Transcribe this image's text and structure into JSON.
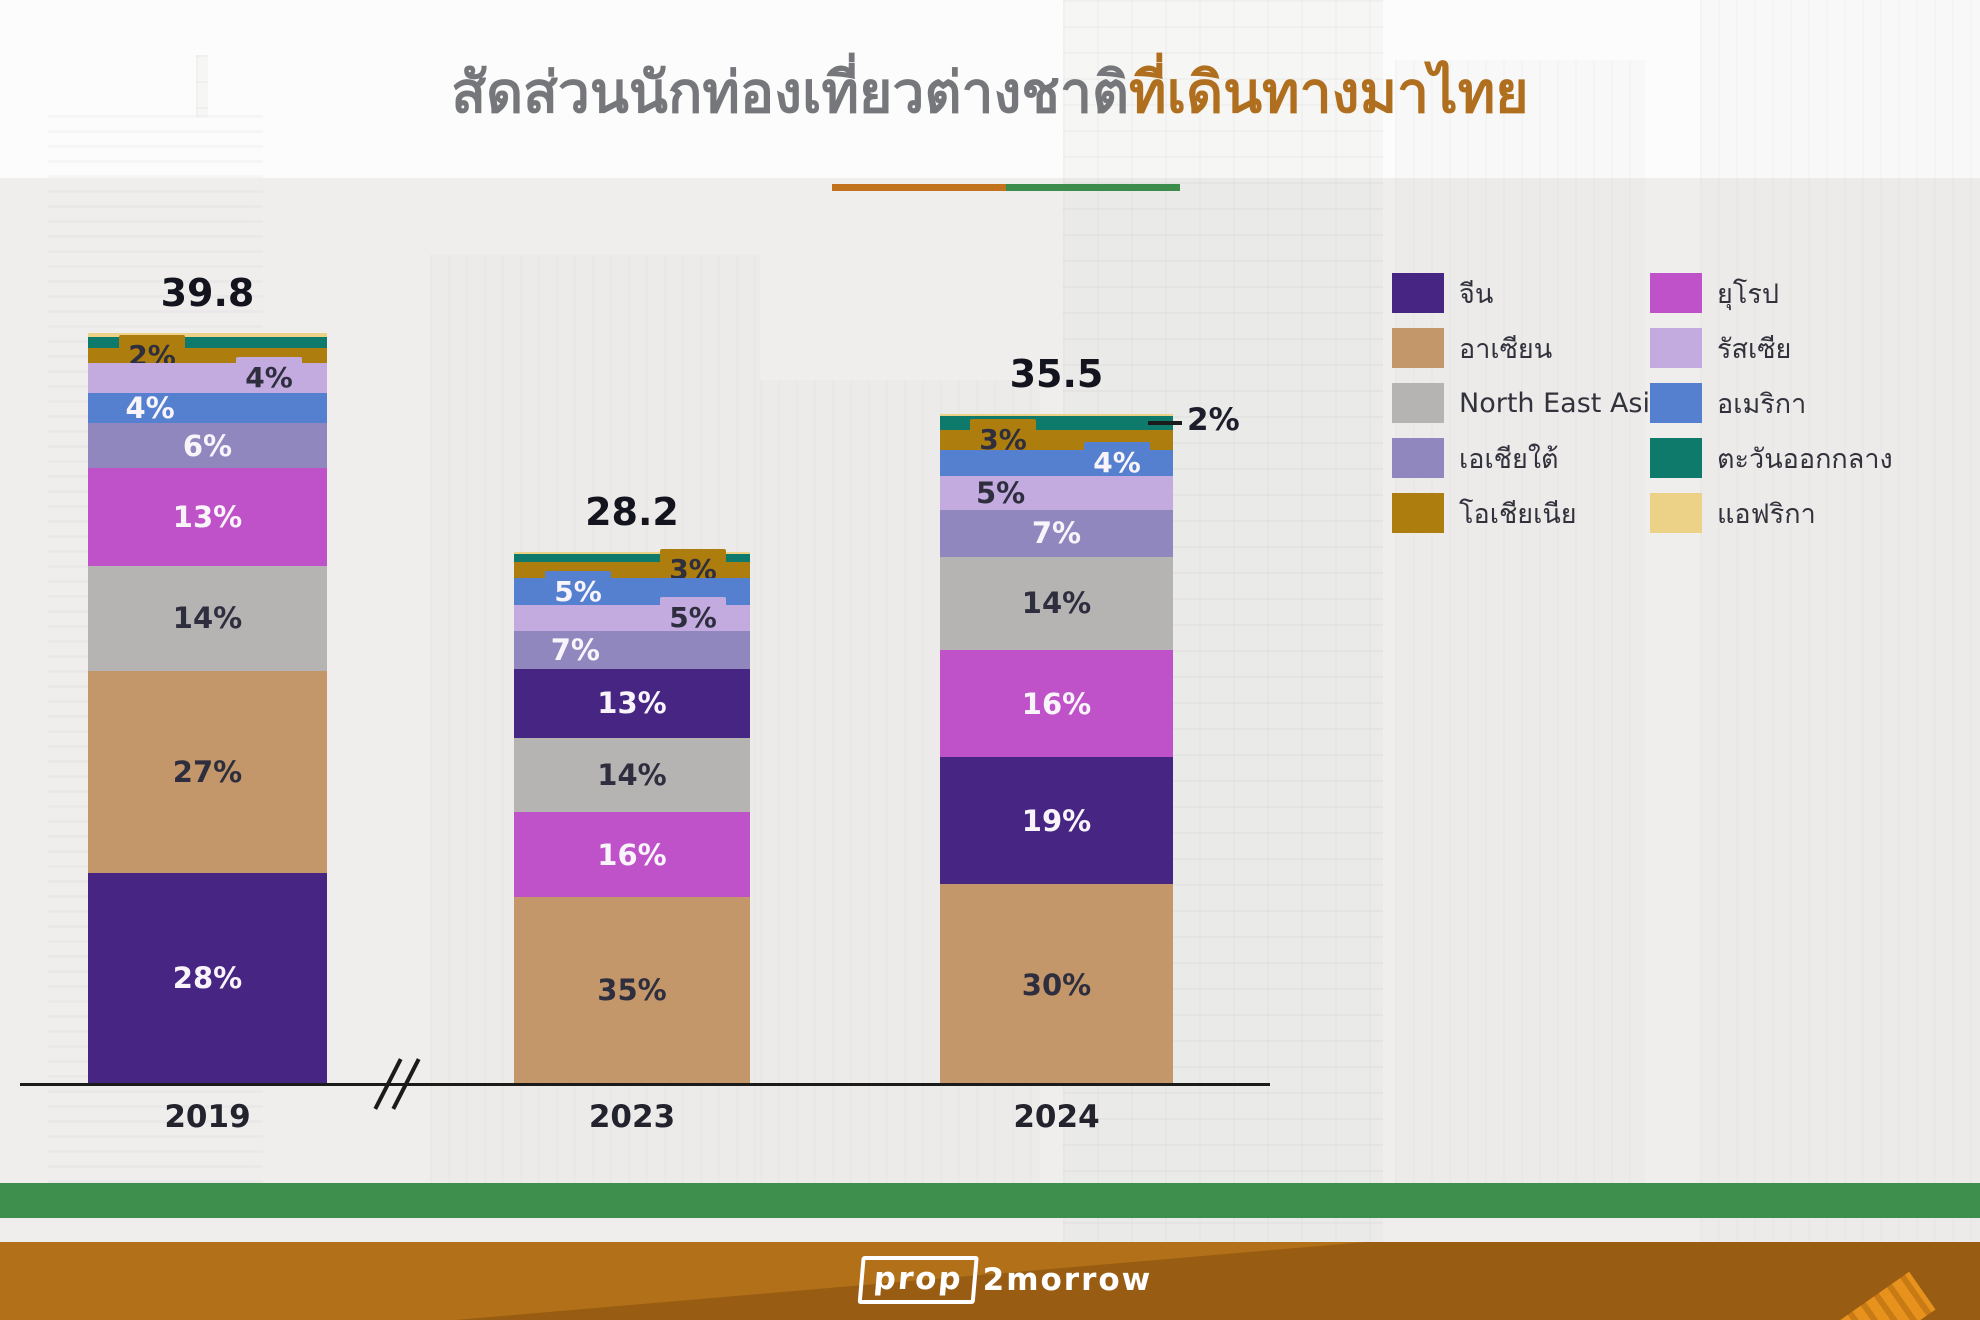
{
  "title": {
    "part1": "สัดส่วนนักท่องเที่ยวต่างชาติ",
    "part2": "ที่เดินทางมาไทย"
  },
  "colors": {
    "title_part1": "#76777a",
    "title_part2": "#b06f1e",
    "divider_orange": "#c2711c",
    "divider_green": "#3c8c4c",
    "bottom_bar_green": "#3e8e4e",
    "footer_light": "#b27018",
    "footer_dark": "#985c12",
    "axis": "#1b1b1b",
    "label_dark": "#2e2e3e",
    "label_light": "#f8f4fa"
  },
  "series": {
    "china": {
      "label": "จีน",
      "color": "#472583"
    },
    "asean": {
      "label": "อาเซียน",
      "color": "#c3976a"
    },
    "north_east_asia": {
      "label": "North East Asia",
      "color": "#b6b3b3"
    },
    "south_asia": {
      "label": "เอเชียใต้",
      "color": "#8f87bd"
    },
    "oceania": {
      "label": "โอเชียเนีย",
      "color": "#ad7e0d"
    },
    "europe": {
      "label": "ยุโรป",
      "color": "#bf52c8"
    },
    "russia": {
      "label": "รัสเซีย",
      "color": "#c3abdf"
    },
    "america": {
      "label": "อเมริกา",
      "color": "#5480cf"
    },
    "middle_east": {
      "label": "ตะวันออกกลาง",
      "color": "#0d7a6c"
    },
    "africa": {
      "label": "แอฟริกา",
      "color": "#ecd287"
    }
  },
  "legend": {
    "column1": [
      "china",
      "asean",
      "north_east_asia",
      "south_asia",
      "oceania"
    ],
    "column2": [
      "europe",
      "russia",
      "america",
      "middle_east",
      "africa"
    ]
  },
  "chart_data": {
    "type": "bar",
    "subtype": "stacked-percentage",
    "description": "Share of foreign tourist nationalities travelling to Thailand; bar height equals total arrivals in millions",
    "x": [
      "2019",
      "2023",
      "2024"
    ],
    "totals": [
      39.8,
      28.2,
      35.5
    ],
    "legend_position": "right",
    "grid": false,
    "bars": [
      {
        "year": "2019",
        "total": 39.8,
        "total_label": "39.8",
        "segments_top_to_bottom": [
          {
            "region": "africa",
            "pct": 0.5,
            "label": "",
            "placement": "none",
            "text": "dark"
          },
          {
            "region": "middle_east",
            "pct": 1.5,
            "label": "",
            "placement": "none",
            "text": "dark"
          },
          {
            "region": "oceania",
            "pct": 2,
            "label": "2%",
            "placement": "box-left",
            "text": "dark"
          },
          {
            "region": "russia",
            "pct": 4,
            "label": "4%",
            "placement": "box-right",
            "text": "dark"
          },
          {
            "region": "america",
            "pct": 4,
            "label": "4%",
            "placement": "in-left",
            "text": "light"
          },
          {
            "region": "south_asia",
            "pct": 6,
            "label": "6%",
            "placement": "in-center",
            "text": "light"
          },
          {
            "region": "europe",
            "pct": 13,
            "label": "13%",
            "placement": "in-center",
            "text": "light"
          },
          {
            "region": "north_east_asia",
            "pct": 14,
            "label": "14%",
            "placement": "in-center",
            "text": "dark"
          },
          {
            "region": "asean",
            "pct": 27,
            "label": "27%",
            "placement": "in-center",
            "text": "dark"
          },
          {
            "region": "china",
            "pct": 28,
            "label": "28%",
            "placement": "in-center",
            "text": "light"
          }
        ]
      },
      {
        "year": "2023",
        "total": 28.2,
        "total_label": "28.2",
        "segments_top_to_bottom": [
          {
            "region": "africa",
            "pct": 0.5,
            "label": "",
            "placement": "none",
            "text": "dark"
          },
          {
            "region": "middle_east",
            "pct": 1.5,
            "label": "",
            "placement": "none",
            "text": "dark"
          },
          {
            "region": "oceania",
            "pct": 3,
            "label": "3%",
            "placement": "box-right",
            "text": "dark"
          },
          {
            "region": "america",
            "pct": 5,
            "label": "5%",
            "placement": "box-left",
            "text": "light"
          },
          {
            "region": "russia",
            "pct": 5,
            "label": "5%",
            "placement": "box-right",
            "text": "dark"
          },
          {
            "region": "south_asia",
            "pct": 7,
            "label": "7%",
            "placement": "in-left",
            "text": "light"
          },
          {
            "region": "china",
            "pct": 13,
            "label": "13%",
            "placement": "in-center",
            "text": "light"
          },
          {
            "region": "north_east_asia",
            "pct": 14,
            "label": "14%",
            "placement": "in-center",
            "text": "dark"
          },
          {
            "region": "europe",
            "pct": 16,
            "label": "16%",
            "placement": "in-center",
            "text": "light"
          },
          {
            "region": "asean",
            "pct": 35,
            "label": "35%",
            "placement": "in-center",
            "text": "dark"
          }
        ]
      },
      {
        "year": "2024",
        "total": 35.5,
        "total_label": "35.5",
        "segments_top_to_bottom": [
          {
            "region": "africa",
            "pct": 0.3,
            "label": "",
            "placement": "none",
            "text": "dark"
          },
          {
            "region": "middle_east",
            "pct": 2,
            "label": "2%",
            "placement": "leader-right",
            "text": "dark"
          },
          {
            "region": "oceania",
            "pct": 3,
            "label": "3%",
            "placement": "box-left",
            "text": "dark"
          },
          {
            "region": "america",
            "pct": 4,
            "label": "4%",
            "placement": "box-right",
            "text": "light"
          },
          {
            "region": "russia",
            "pct": 5,
            "label": "5%",
            "placement": "in-left",
            "text": "dark"
          },
          {
            "region": "south_asia",
            "pct": 7,
            "label": "7%",
            "placement": "in-center",
            "text": "light"
          },
          {
            "region": "north_east_asia",
            "pct": 14,
            "label": "14%",
            "placement": "in-center",
            "text": "dark"
          },
          {
            "region": "europe",
            "pct": 16,
            "label": "16%",
            "placement": "in-center",
            "text": "light"
          },
          {
            "region": "china",
            "pct": 19,
            "label": "19%",
            "placement": "in-center",
            "text": "light"
          },
          {
            "region": "asean",
            "pct": 30,
            "label": "30%",
            "placement": "in-center",
            "text": "dark"
          }
        ]
      }
    ]
  },
  "footer": {
    "logo_part1": "prop",
    "logo_part2": "2morrow"
  }
}
